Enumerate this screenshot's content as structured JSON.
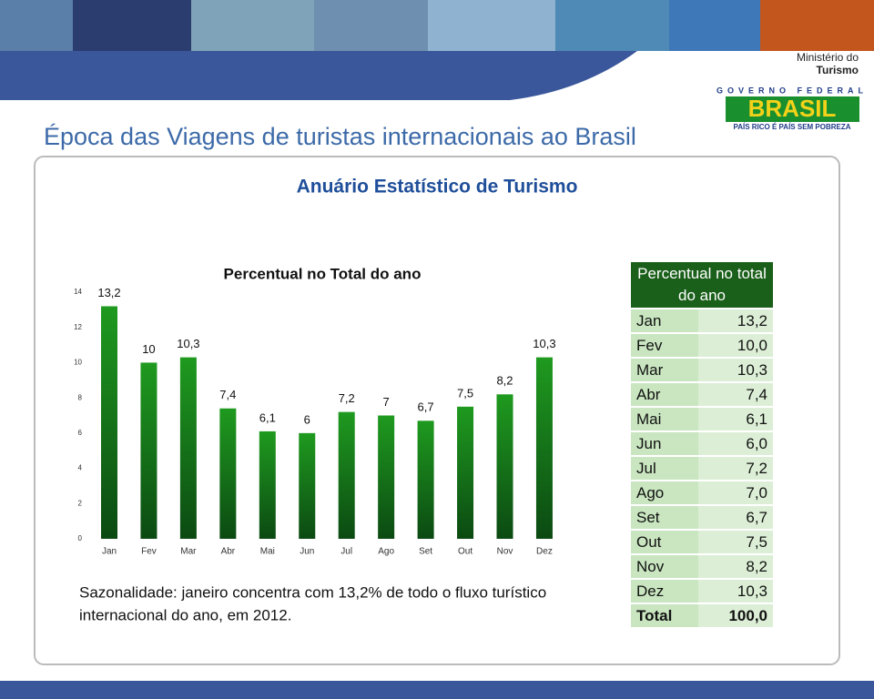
{
  "header": {
    "title": "Época das Viagens de turistas internacionais ao Brasil",
    "ministry": "Ministério do",
    "ministry_name": "Turismo",
    "gov": "GOVERNO FEDERAL",
    "brand": "BRASIL",
    "motto": "PAÍS RICO É PAÍS SEM POBREZA"
  },
  "subtitle": "Anuário Estatístico de Turismo",
  "chart_data": {
    "type": "bar",
    "title": "Percentual no Total do ano",
    "categories": [
      "Jan",
      "Fev",
      "Mar",
      "Abr",
      "Mai",
      "Jun",
      "Jul",
      "Ago",
      "Set",
      "Out",
      "Nov",
      "Dez"
    ],
    "values": [
      13.2,
      10,
      10.3,
      7.4,
      6.1,
      6,
      7.2,
      7,
      6.7,
      7.5,
      8.2,
      10.3
    ],
    "value_labels": [
      "13,2",
      "10",
      "10,3",
      "7,4",
      "6,1",
      "6",
      "7,2",
      "7",
      "6,7",
      "7,5",
      "8,2",
      "10,3"
    ],
    "color": "#1f9a1f",
    "ylim": [
      0,
      14
    ],
    "yticks": [
      0,
      2,
      4,
      6,
      8,
      10,
      12,
      14
    ]
  },
  "note": [
    "Sazonalidade: janeiro concentra com 13,2% de todo o fluxo turístico",
    "internacional do ano, em 2012."
  ],
  "table": {
    "header": "Percentual no total do ano",
    "rows": [
      [
        "Jan",
        "13,2"
      ],
      [
        "Fev",
        "10,0"
      ],
      [
        "Mar",
        "10,3"
      ],
      [
        "Abr",
        "7,4"
      ],
      [
        "Mai",
        "6,1"
      ],
      [
        "Jun",
        "6,0"
      ],
      [
        "Jul",
        "7,2"
      ],
      [
        "Ago",
        "7,0"
      ],
      [
        "Set",
        "6,7"
      ],
      [
        "Out",
        "7,5"
      ],
      [
        "Nov",
        "8,2"
      ],
      [
        "Dez",
        "10,3"
      ],
      [
        "Total",
        "100,0"
      ]
    ]
  }
}
